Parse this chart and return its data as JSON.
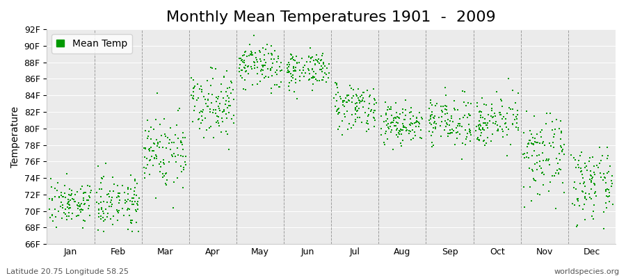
{
  "title": "Monthly Mean Temperatures 1901  -  2009",
  "ylabel": "Temperature",
  "footer_left": "Latitude 20.75 Longitude 58.25",
  "footer_right": "worldspecies.org",
  "legend_label": "Mean Temp",
  "months": [
    "Jan",
    "Feb",
    "Mar",
    "Apr",
    "May",
    "Jun",
    "Jul",
    "Aug",
    "Sep",
    "Oct",
    "Nov",
    "Dec"
  ],
  "ylim": [
    66,
    92
  ],
  "yticks": [
    66,
    68,
    70,
    72,
    74,
    76,
    78,
    80,
    82,
    84,
    86,
    88,
    90,
    92
  ],
  "ytick_labels": [
    "66F",
    "68F",
    "70F",
    "72F",
    "74F",
    "76F",
    "78F",
    "80F",
    "82F",
    "84F",
    "86F",
    "88F",
    "90F",
    "92F"
  ],
  "dot_color": "#009900",
  "bg_color": "#ebebeb",
  "monthly_means": [
    71.0,
    71.2,
    77.2,
    83.2,
    87.5,
    87.2,
    82.8,
    80.5,
    80.8,
    81.0,
    76.5,
    73.2
  ],
  "monthly_stds": [
    0.8,
    1.0,
    1.5,
    1.2,
    0.9,
    0.7,
    0.9,
    0.8,
    0.9,
    0.9,
    1.5,
    1.3
  ],
  "n_years": 109,
  "seed": 7,
  "title_fontsize": 16,
  "axis_fontsize": 10,
  "tick_fontsize": 9,
  "footer_fontsize": 8
}
